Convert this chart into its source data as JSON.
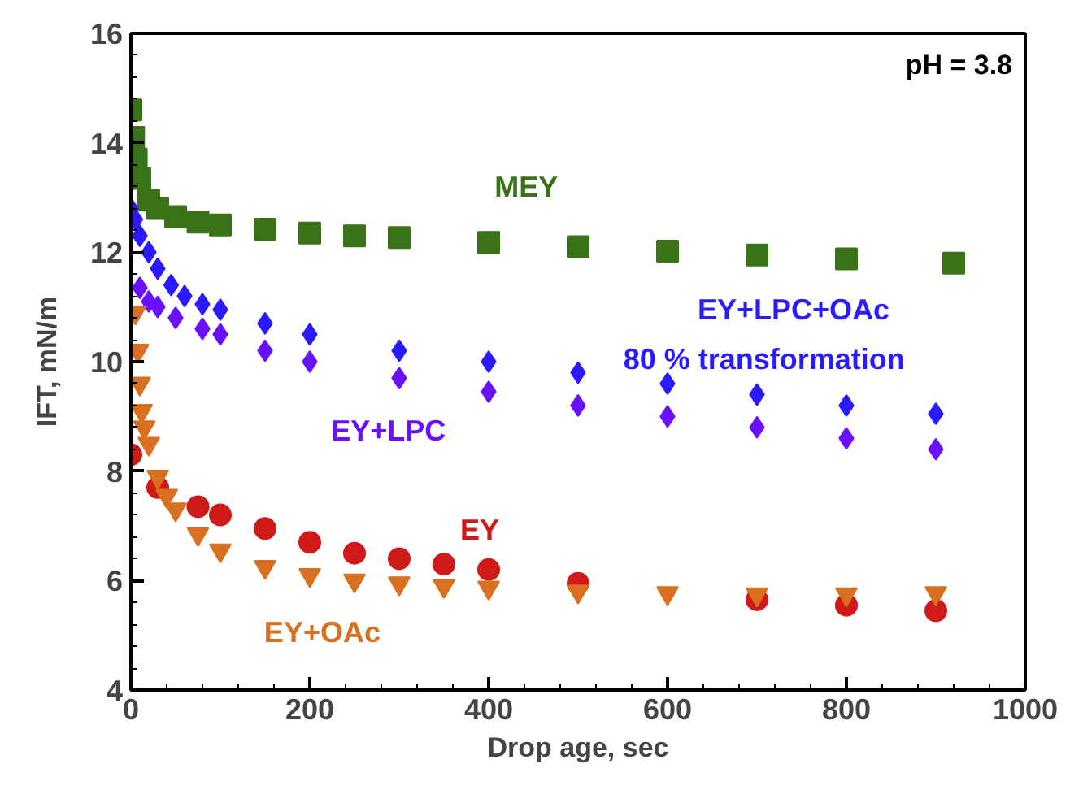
{
  "chart_data": {
    "type": "scatter",
    "xlabel": "Drop age, sec",
    "ylabel": "IFT, mN/m",
    "xlim": [
      0,
      1000
    ],
    "ylim": [
      4,
      16
    ],
    "xticks": [
      0,
      200,
      400,
      600,
      800,
      1000
    ],
    "yticks": [
      4,
      6,
      8,
      10,
      12,
      14,
      16
    ],
    "grid": false,
    "series": [
      {
        "name": "MEY",
        "color": "#3a7317",
        "marker": "square",
        "x": [
          0,
          3,
          6,
          10,
          20,
          30,
          50,
          75,
          100,
          150,
          200,
          250,
          300,
          400,
          500,
          600,
          700,
          800,
          920
        ],
        "values": [
          14.6,
          14.1,
          13.7,
          13.35,
          12.95,
          12.8,
          12.65,
          12.55,
          12.5,
          12.42,
          12.35,
          12.3,
          12.27,
          12.18,
          12.1,
          12.02,
          11.95,
          11.88,
          11.8
        ]
      },
      {
        "name": "EY+LPC+OAc\n80 % transformation",
        "color": "#2a1aff",
        "marker": "diamond",
        "x": [
          0,
          5,
          10,
          20,
          30,
          45,
          60,
          80,
          100,
          150,
          200,
          300,
          400,
          500,
          600,
          700,
          800,
          900
        ],
        "values": [
          12.8,
          12.6,
          12.3,
          12.0,
          11.7,
          11.4,
          11.2,
          11.05,
          10.95,
          10.7,
          10.5,
          10.2,
          10.0,
          9.8,
          9.6,
          9.4,
          9.2,
          9.05
        ]
      },
      {
        "name": "EY+LPC",
        "color": "#6a10ff",
        "marker": "diamond",
        "x": [
          10,
          20,
          30,
          50,
          80,
          100,
          150,
          200,
          300,
          400,
          500,
          600,
          700,
          800,
          900
        ],
        "values": [
          11.35,
          11.1,
          11.0,
          10.8,
          10.6,
          10.5,
          10.2,
          10.0,
          9.7,
          9.45,
          9.2,
          9.0,
          8.8,
          8.6,
          8.4
        ]
      },
      {
        "name": "EY",
        "color": "#d01a1a",
        "marker": "circle",
        "x": [
          0,
          30,
          75,
          100,
          150,
          200,
          250,
          300,
          350,
          400,
          500,
          700,
          800,
          900
        ],
        "values": [
          8.3,
          7.7,
          7.35,
          7.2,
          6.95,
          6.7,
          6.5,
          6.4,
          6.3,
          6.2,
          5.95,
          5.65,
          5.55,
          5.45
        ]
      },
      {
        "name": "EY+OAc",
        "color": "#d87020",
        "marker": "triangle",
        "x": [
          5,
          8,
          10,
          12,
          15,
          20,
          30,
          40,
          50,
          75,
          100,
          150,
          200,
          250,
          300,
          350,
          400,
          500,
          600,
          700,
          800,
          900
        ],
        "values": [
          10.9,
          10.2,
          9.6,
          9.1,
          8.8,
          8.5,
          7.9,
          7.55,
          7.3,
          6.85,
          6.55,
          6.25,
          6.1,
          6.0,
          5.95,
          5.9,
          5.87,
          5.8,
          5.77,
          5.75,
          5.75,
          5.77
        ]
      }
    ],
    "annotations": [
      "pH = 3.8"
    ]
  }
}
